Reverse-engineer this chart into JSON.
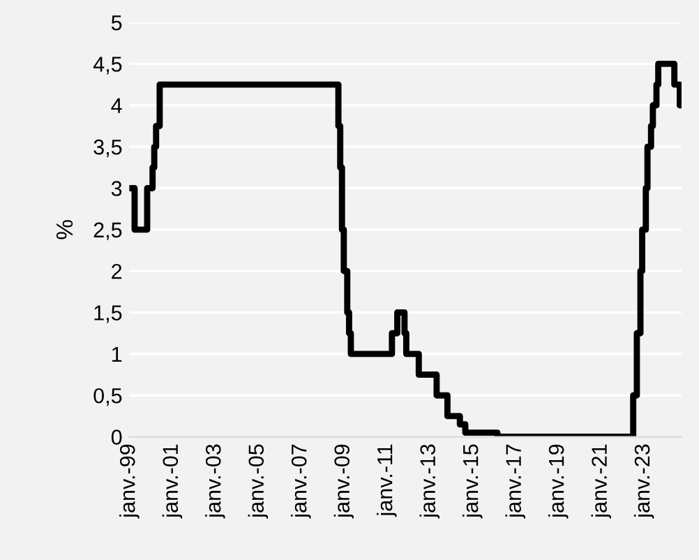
{
  "chart_data": {
    "type": "step",
    "ylabel": "%",
    "color": "#000000",
    "x": [
      "1999-01",
      "1999-04",
      "1999-11",
      "2000-02",
      "2000-03",
      "2000-04",
      "2000-06",
      "2008-10",
      "2008-11",
      "2008-12",
      "2009-01",
      "2009-03",
      "2009-04",
      "2009-05",
      "2011-04",
      "2011-07",
      "2011-11",
      "2011-12",
      "2012-07",
      "2013-05",
      "2013-11",
      "2014-06",
      "2014-09",
      "2016-03",
      "2022-07",
      "2022-09",
      "2022-11",
      "2022-12",
      "2023-02",
      "2023-03",
      "2023-05",
      "2023-06",
      "2023-08",
      "2023-09",
      "2024-06",
      "2024-09",
      "2024-10"
    ],
    "values": [
      3,
      2.5,
      3,
      3.25,
      3.5,
      3.75,
      4.25,
      3.75,
      3.25,
      2.5,
      2,
      1.5,
      1.25,
      1,
      1.25,
      1.5,
      1.25,
      1,
      0.75,
      0.5,
      0.25,
      0.15,
      0.05,
      0,
      0.5,
      1.25,
      2,
      2.5,
      3,
      3.5,
      3.75,
      4,
      4.25,
      4.5,
      4.25,
      4,
      4
    ],
    "xlim": [
      "1999-01",
      "2024-10"
    ],
    "xticks": [
      {
        "value": "1999-01",
        "label": "janv.-99"
      },
      {
        "value": "2001-01",
        "label": "janv.-01"
      },
      {
        "value": "2003-01",
        "label": "janv.-03"
      },
      {
        "value": "2005-01",
        "label": "janv.-05"
      },
      {
        "value": "2007-01",
        "label": "janv.-07"
      },
      {
        "value": "2009-01",
        "label": "janv.-09"
      },
      {
        "value": "2011-01",
        "label": "janv.-11"
      },
      {
        "value": "2013-01",
        "label": "janv.-13"
      },
      {
        "value": "2015-01",
        "label": "janv.-15"
      },
      {
        "value": "2017-01",
        "label": "janv.-17"
      },
      {
        "value": "2019-01",
        "label": "janv.-19"
      },
      {
        "value": "2021-01",
        "label": "janv.-21"
      },
      {
        "value": "2023-01",
        "label": "janv.-23"
      }
    ],
    "ylim": [
      0,
      5
    ],
    "yticks": [
      {
        "value": 0,
        "label": "0"
      },
      {
        "value": 0.5,
        "label": "0,5"
      },
      {
        "value": 1,
        "label": "1"
      },
      {
        "value": 1.5,
        "label": "1,5"
      },
      {
        "value": 2,
        "label": "2"
      },
      {
        "value": 2.5,
        "label": "2,5"
      },
      {
        "value": 3,
        "label": "3"
      },
      {
        "value": 3.5,
        "label": "3,5"
      },
      {
        "value": 4,
        "label": "4"
      },
      {
        "value": 4.5,
        "label": "4,5"
      },
      {
        "value": 5,
        "label": "5"
      }
    ],
    "grid": "y",
    "line_style": "solid",
    "marker": "none"
  }
}
